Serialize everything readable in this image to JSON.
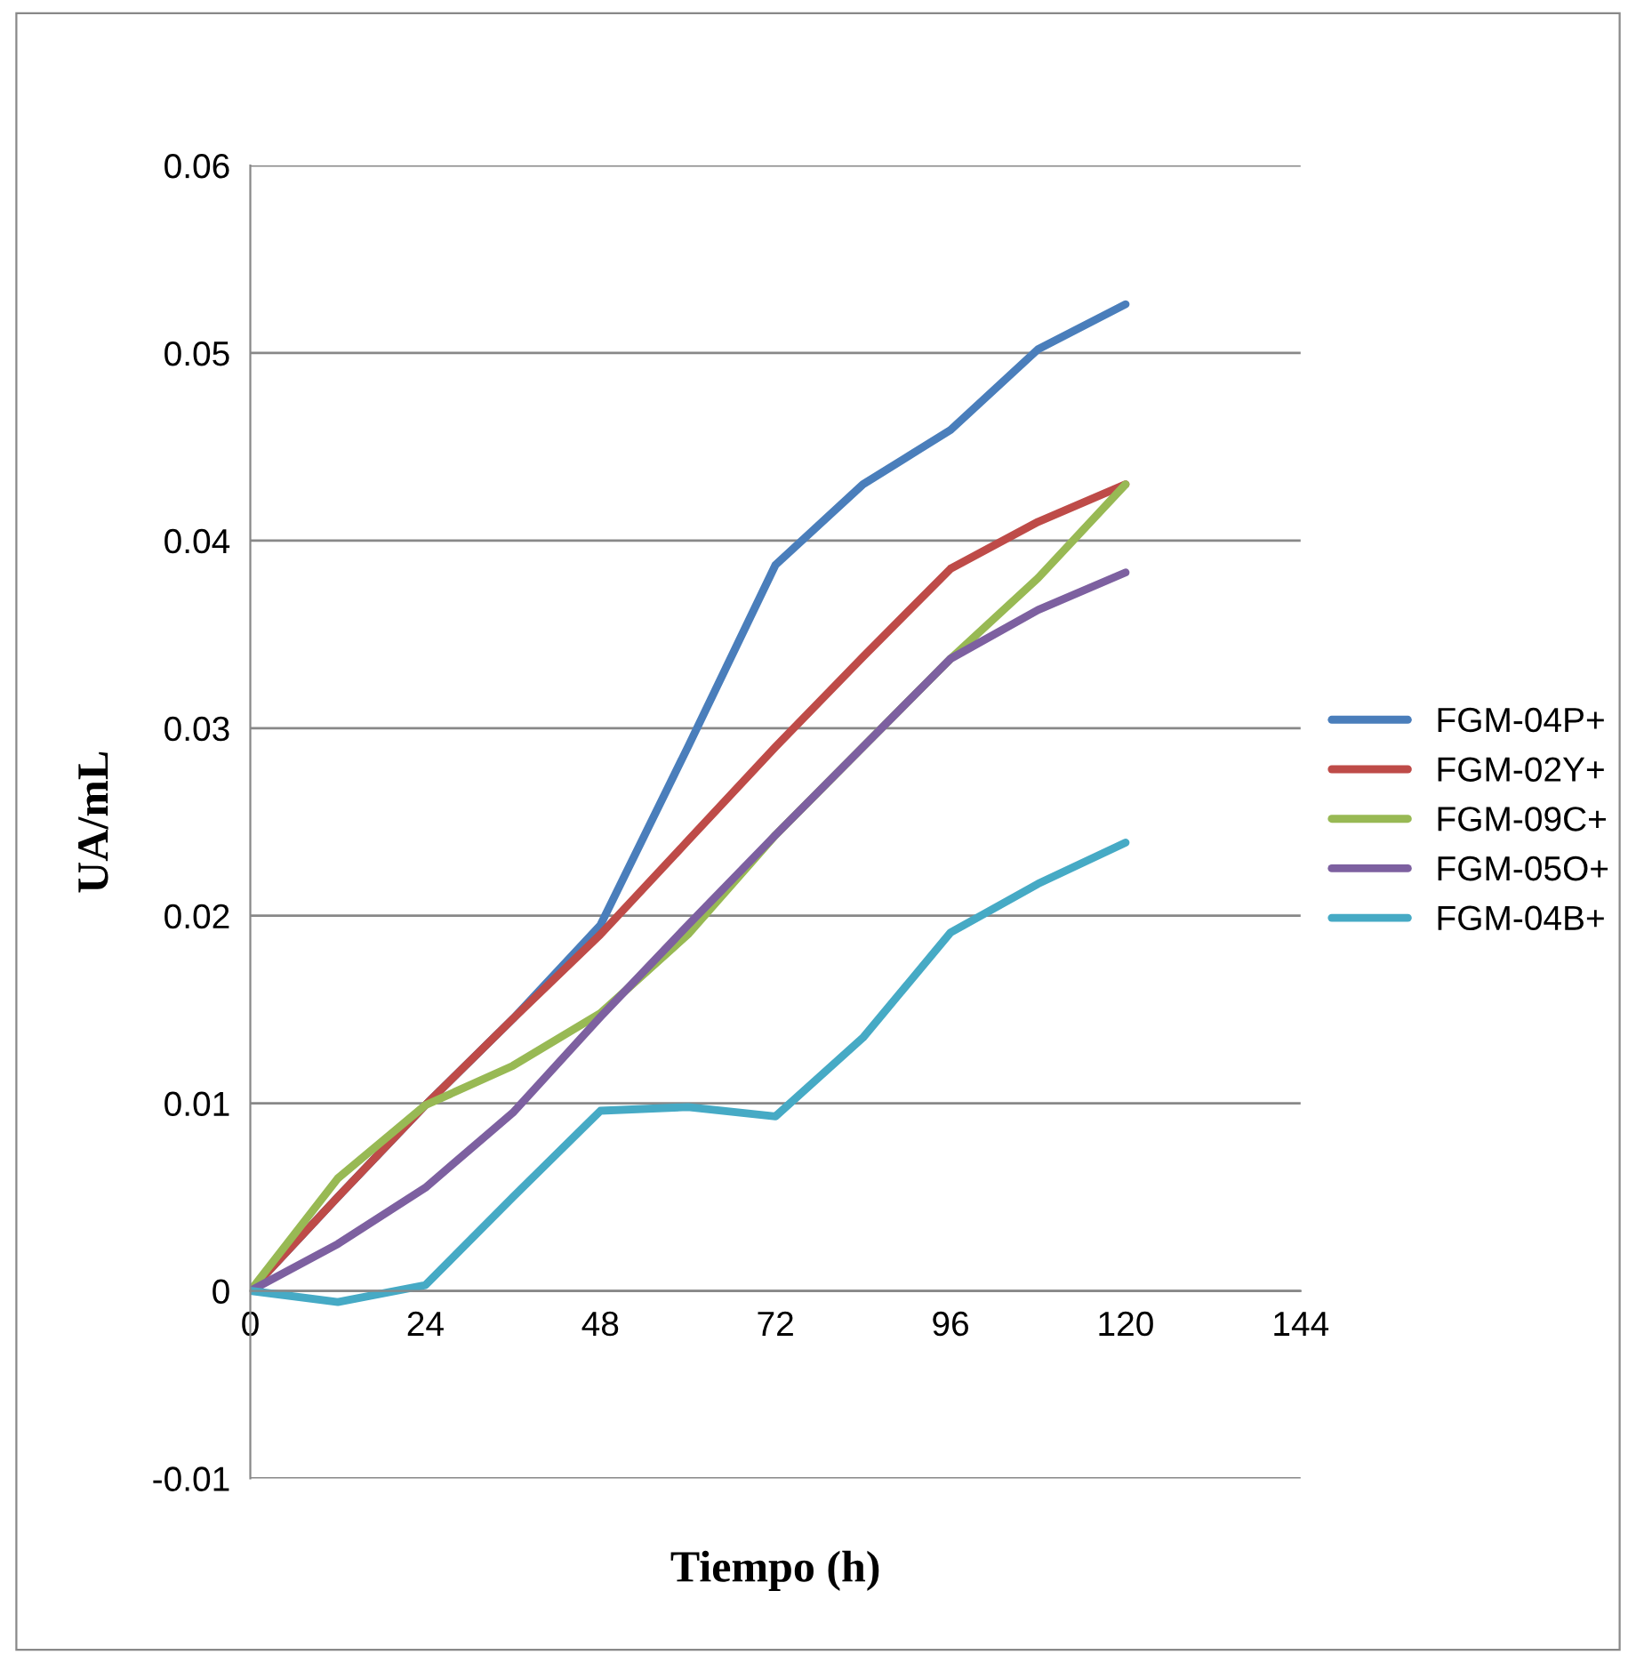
{
  "chart_data": {
    "type": "line",
    "xlabel": "Tiempo (h)",
    "ylabel": "UA/mL",
    "x": [
      0,
      12,
      24,
      36,
      48,
      60,
      72,
      84,
      96,
      108,
      120
    ],
    "series": [
      {
        "name": "FGM-04P+",
        "color": "#4a7ebb",
        "values": [
          0,
          0.005,
          0.0099,
          0.0145,
          0.0195,
          0.029,
          0.0387,
          0.043,
          0.0459,
          0.0502,
          0.0526
        ]
      },
      {
        "name": "FGM-02Y+",
        "color": "#be4b48",
        "values": [
          0,
          0.005,
          0.0099,
          0.0145,
          0.019,
          0.024,
          0.029,
          0.0338,
          0.0385,
          0.041,
          0.043
        ]
      },
      {
        "name": "FGM-09C+",
        "color": "#98b954",
        "values": [
          0,
          0.006,
          0.0099,
          0.012,
          0.0148,
          0.019,
          0.0243,
          0.029,
          0.0337,
          0.038,
          0.043
        ]
      },
      {
        "name": "FGM-05O+",
        "color": "#7d60a0",
        "values": [
          0,
          0.0025,
          0.0055,
          0.0095,
          0.0146,
          0.0195,
          0.0243,
          0.029,
          0.0337,
          0.0363,
          0.0383
        ]
      },
      {
        "name": "FGM-04B+",
        "color": "#46aac5",
        "values": [
          0,
          -0.0006,
          0.0003,
          0.005,
          0.0096,
          0.0098,
          0.0093,
          0.0135,
          0.0191,
          0.0217,
          0.0239
        ]
      }
    ],
    "xlim": [
      0,
      144
    ],
    "xticks": [
      0,
      24,
      48,
      72,
      96,
      120,
      144
    ],
    "ylim": [
      -0.01,
      0.06
    ],
    "yticks": [
      -0.01,
      0,
      0.01,
      0.02,
      0.03,
      0.04,
      0.05,
      0.06
    ],
    "grid": "y",
    "legend": "right",
    "marker": "none",
    "line_style": "solid"
  }
}
